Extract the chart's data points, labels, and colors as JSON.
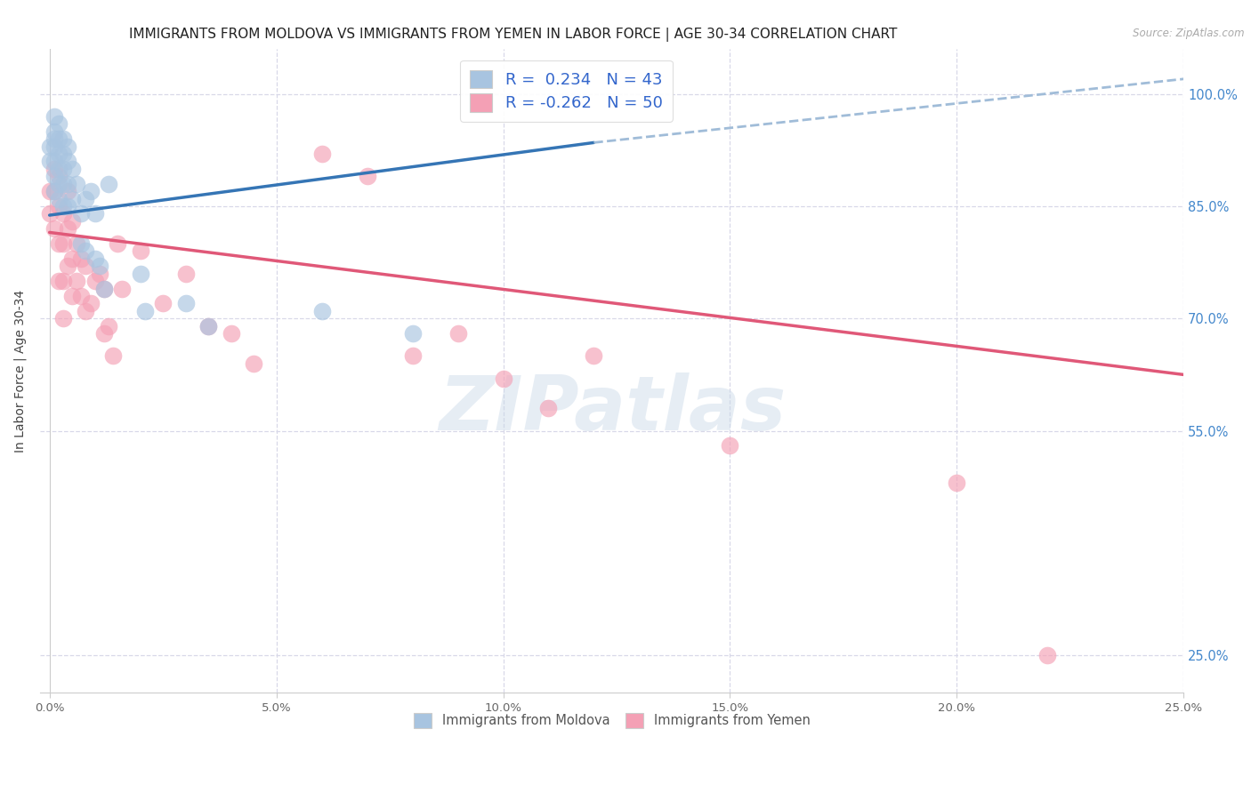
{
  "title": "IMMIGRANTS FROM MOLDOVA VS IMMIGRANTS FROM YEMEN IN LABOR FORCE | AGE 30-34 CORRELATION CHART",
  "source": "Source: ZipAtlas.com",
  "ylabel": "In Labor Force | Age 30-34",
  "xlabel_ticks": [
    "0.0%",
    "5.0%",
    "10.0%",
    "15.0%",
    "20.0%",
    "25.0%"
  ],
  "ytick_labels": [
    "100.0%",
    "85.0%",
    "70.0%",
    "55.0%",
    "25.0%"
  ],
  "ytick_positions": [
    1.0,
    0.85,
    0.7,
    0.55,
    0.25
  ],
  "xlim": [
    -0.002,
    0.25
  ],
  "ylim": [
    0.2,
    1.06
  ],
  "moldova_R": 0.234,
  "moldova_N": 43,
  "yemen_R": -0.262,
  "yemen_N": 50,
  "moldova_color": "#a8c4e0",
  "yemen_color": "#f4a0b5",
  "moldova_line_color": "#3575b5",
  "yemen_line_color": "#e05878",
  "dashed_line_color": "#a0bcd8",
  "background_color": "#ffffff",
  "grid_color": "#d8d8e8",
  "title_fontsize": 11,
  "axis_label_fontsize": 10,
  "tick_fontsize": 9.5,
  "legend_fontsize": 13,
  "moldova_x": [
    0.0,
    0.0,
    0.001,
    0.001,
    0.001,
    0.001,
    0.001,
    0.001,
    0.001,
    0.002,
    0.002,
    0.002,
    0.002,
    0.002,
    0.002,
    0.003,
    0.003,
    0.003,
    0.003,
    0.003,
    0.004,
    0.004,
    0.004,
    0.004,
    0.005,
    0.005,
    0.006,
    0.007,
    0.007,
    0.008,
    0.008,
    0.009,
    0.01,
    0.01,
    0.011,
    0.012,
    0.013,
    0.02,
    0.021,
    0.03,
    0.035,
    0.06,
    0.08
  ],
  "moldova_y": [
    0.93,
    0.91,
    0.97,
    0.95,
    0.94,
    0.93,
    0.91,
    0.89,
    0.87,
    0.96,
    0.94,
    0.92,
    0.9,
    0.88,
    0.86,
    0.94,
    0.92,
    0.9,
    0.88,
    0.85,
    0.93,
    0.91,
    0.88,
    0.85,
    0.9,
    0.86,
    0.88,
    0.84,
    0.8,
    0.86,
    0.79,
    0.87,
    0.84,
    0.78,
    0.77,
    0.74,
    0.88,
    0.76,
    0.71,
    0.72,
    0.69,
    0.71,
    0.68
  ],
  "yemen_x": [
    0.0,
    0.0,
    0.001,
    0.001,
    0.001,
    0.002,
    0.002,
    0.002,
    0.002,
    0.003,
    0.003,
    0.003,
    0.003,
    0.004,
    0.004,
    0.004,
    0.005,
    0.005,
    0.005,
    0.006,
    0.006,
    0.007,
    0.007,
    0.008,
    0.008,
    0.009,
    0.01,
    0.011,
    0.012,
    0.012,
    0.013,
    0.014,
    0.015,
    0.016,
    0.02,
    0.025,
    0.03,
    0.035,
    0.04,
    0.045,
    0.06,
    0.07,
    0.08,
    0.09,
    0.1,
    0.11,
    0.12,
    0.15,
    0.2,
    0.22
  ],
  "yemen_y": [
    0.87,
    0.84,
    0.9,
    0.87,
    0.82,
    0.89,
    0.85,
    0.8,
    0.75,
    0.84,
    0.8,
    0.75,
    0.7,
    0.87,
    0.82,
    0.77,
    0.83,
    0.78,
    0.73,
    0.8,
    0.75,
    0.78,
    0.73,
    0.77,
    0.71,
    0.72,
    0.75,
    0.76,
    0.74,
    0.68,
    0.69,
    0.65,
    0.8,
    0.74,
    0.79,
    0.72,
    0.76,
    0.69,
    0.68,
    0.64,
    0.92,
    0.89,
    0.65,
    0.68,
    0.62,
    0.58,
    0.65,
    0.53,
    0.48,
    0.25
  ]
}
